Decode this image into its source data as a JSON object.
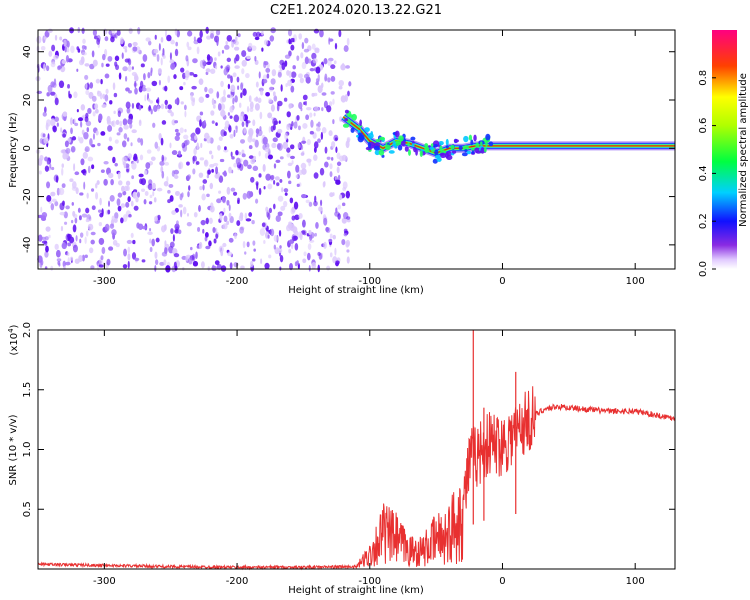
{
  "title": "C2E1.2024.020.13.22.G21",
  "colors": {
    "spec_core": "#e02020",
    "spec_dots": "#6010f0",
    "snr_line": "#e83030"
  },
  "chart_data": [
    {
      "type": "heatmap",
      "xlabel": "Height of straight line (km)",
      "ylabel": "Frequency (Hz)",
      "xlim": [
        -350,
        130
      ],
      "ylim": [
        -50,
        49
      ],
      "xticks": [
        -300,
        -200,
        -100,
        0,
        100
      ],
      "yticks": [
        -40,
        -20,
        0,
        20,
        40
      ],
      "colorbar": {
        "label": "Normalized spectral amplitude",
        "range": [
          0,
          1
        ],
        "ticks": [
          "0.0",
          "0.2",
          "0.4",
          "0.6",
          "0.8"
        ]
      },
      "noise_region_x": [
        -350,
        -115
      ],
      "ridge": [
        {
          "x": -120,
          "y": 13
        },
        {
          "x": -108,
          "y": 8
        },
        {
          "x": -100,
          "y": 3
        },
        {
          "x": -90,
          "y": 0
        },
        {
          "x": -80,
          "y": 3
        },
        {
          "x": -70,
          "y": 2
        },
        {
          "x": -60,
          "y": 0
        },
        {
          "x": -50,
          "y": -2
        },
        {
          "x": -40,
          "y": 0
        },
        {
          "x": -30,
          "y": 0
        },
        {
          "x": -20,
          "y": 1
        },
        {
          "x": -10,
          "y": 1
        },
        {
          "x": 0,
          "y": 1
        },
        {
          "x": 20,
          "y": 1
        },
        {
          "x": 60,
          "y": 1
        },
        {
          "x": 100,
          "y": 1
        },
        {
          "x": 130,
          "y": 1
        }
      ]
    },
    {
      "type": "line",
      "xlabel": "Height of straight line (km)",
      "ylabel": "SNR (10 * v/v)",
      "yscale_label": "(x10",
      "yscale_exp": "4",
      "yscale_close": ")",
      "xlim": [
        -350,
        130
      ],
      "ylim": [
        0,
        2.0
      ],
      "xticks": [
        -300,
        -200,
        -100,
        0,
        100
      ],
      "yticks": [
        "0.5",
        "1.0",
        "1.5",
        "2.0"
      ],
      "envelope": [
        {
          "x": -350,
          "y": 0.04
        },
        {
          "x": -300,
          "y": 0.03
        },
        {
          "x": -250,
          "y": 0.02
        },
        {
          "x": -200,
          "y": 0.015
        },
        {
          "x": -150,
          "y": 0.015
        },
        {
          "x": -110,
          "y": 0.02
        },
        {
          "x": -100,
          "y": 0.12
        },
        {
          "x": -90,
          "y": 0.3
        },
        {
          "x": -80,
          "y": 0.25
        },
        {
          "x": -70,
          "y": 0.15
        },
        {
          "x": -60,
          "y": 0.15
        },
        {
          "x": -50,
          "y": 0.25
        },
        {
          "x": -40,
          "y": 0.3
        },
        {
          "x": -30,
          "y": 0.5
        },
        {
          "x": -25,
          "y": 0.9
        },
        {
          "x": -20,
          "y": 0.95
        },
        {
          "x": -10,
          "y": 1.05
        },
        {
          "x": 0,
          "y": 1.05
        },
        {
          "x": 10,
          "y": 1.15
        },
        {
          "x": 20,
          "y": 1.25
        },
        {
          "x": 30,
          "y": 1.33
        },
        {
          "x": 40,
          "y": 1.36
        },
        {
          "x": 60,
          "y": 1.34
        },
        {
          "x": 80,
          "y": 1.32
        },
        {
          "x": 100,
          "y": 1.32
        },
        {
          "x": 120,
          "y": 1.28
        },
        {
          "x": 130,
          "y": 1.26
        }
      ],
      "spikes": [
        {
          "x": -22,
          "y": 2.0
        },
        {
          "x": 10,
          "y": 1.65
        },
        {
          "x": -14,
          "y": 1.35
        }
      ]
    }
  ]
}
